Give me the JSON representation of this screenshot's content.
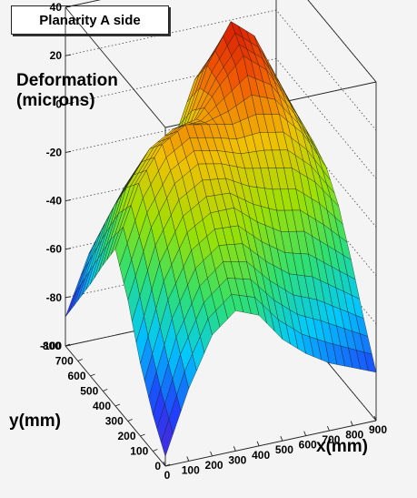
{
  "chart_data": {
    "type": "surface3d",
    "title": "Planarity A side",
    "zlabel_line1": "Deformation",
    "zlabel_line2": "(microns)",
    "xlabel": "x(mm)",
    "ylabel": "y(mm)",
    "xlim": [
      0,
      900
    ],
    "ylim": [
      0,
      800
    ],
    "zlim": [
      -100,
      40
    ],
    "x_ticks": [
      0,
      100,
      200,
      300,
      400,
      500,
      600,
      700,
      800,
      900
    ],
    "y_ticks": [
      0,
      100,
      200,
      300,
      400,
      500,
      600,
      700,
      800
    ],
    "z_ticks": [
      -100,
      -80,
      -60,
      -40,
      -20,
      0,
      20,
      40
    ],
    "colorscale": [
      "#5a20c8",
      "#1e40ff",
      "#00c8ff",
      "#2fe070",
      "#9ee000",
      "#f0c000",
      "#f05000",
      "#c80000"
    ],
    "grid": true,
    "grid_x": [
      0,
      100,
      200,
      300,
      400,
      500,
      600,
      700,
      800,
      900
    ],
    "grid_y": [
      0,
      100,
      200,
      300,
      400,
      500,
      600,
      700,
      800
    ],
    "surface_z": [
      [
        -96,
        -85,
        -70,
        -50,
        -35,
        -48,
        -62,
        -75,
        -88
      ],
      [
        -70,
        -55,
        -38,
        -22,
        -10,
        -18,
        -32,
        -48,
        -64
      ],
      [
        -50,
        -36,
        -20,
        -6,
        4,
        -4,
        -18,
        -32,
        -52
      ],
      [
        -42,
        -28,
        -14,
        0,
        10,
        2,
        -12,
        -26,
        -50
      ],
      [
        -46,
        -30,
        -14,
        -2,
        8,
        4,
        -8,
        -20,
        -60
      ],
      [
        -58,
        -40,
        -22,
        -6,
        6,
        16,
        18,
        6,
        -68
      ],
      [
        -66,
        -48,
        -28,
        -8,
        8,
        26,
        34,
        18,
        -72
      ],
      [
        -72,
        -52,
        -30,
        -10,
        6,
        18,
        26,
        12,
        -76
      ],
      [
        -76,
        -58,
        -38,
        -18,
        -4,
        2,
        6,
        -10,
        -80
      ],
      [
        -80,
        -64,
        -46,
        -30,
        -20,
        -16,
        -14,
        -26,
        -84
      ]
    ]
  }
}
